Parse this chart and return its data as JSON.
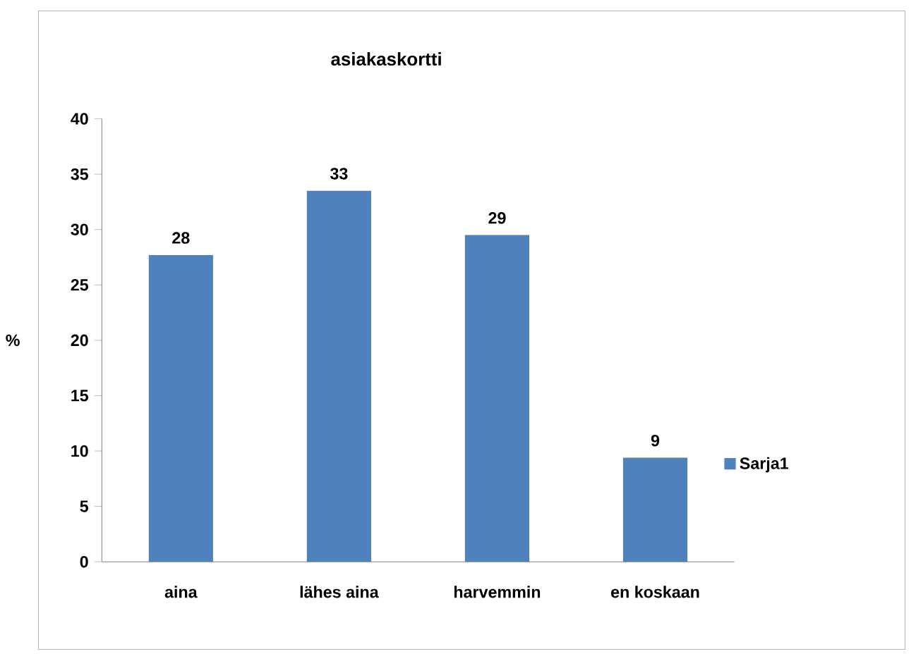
{
  "chart_data": {
    "type": "bar",
    "title": "asiakaskortti",
    "ylabel": "%",
    "categories": [
      "aina",
      "lähes aina",
      "harvemmin",
      "en koskaan"
    ],
    "series": [
      {
        "name": "Sarja1",
        "color": "#4f81bd",
        "values": [
          27.7,
          33.5,
          29.5,
          9.4
        ],
        "value_labels": [
          "28",
          "33",
          "29",
          "9"
        ]
      }
    ],
    "ylim": [
      0,
      40
    ],
    "yticks": [
      0,
      5,
      10,
      15,
      20,
      25,
      30,
      35,
      40
    ],
    "grid": false,
    "legend": "right"
  }
}
